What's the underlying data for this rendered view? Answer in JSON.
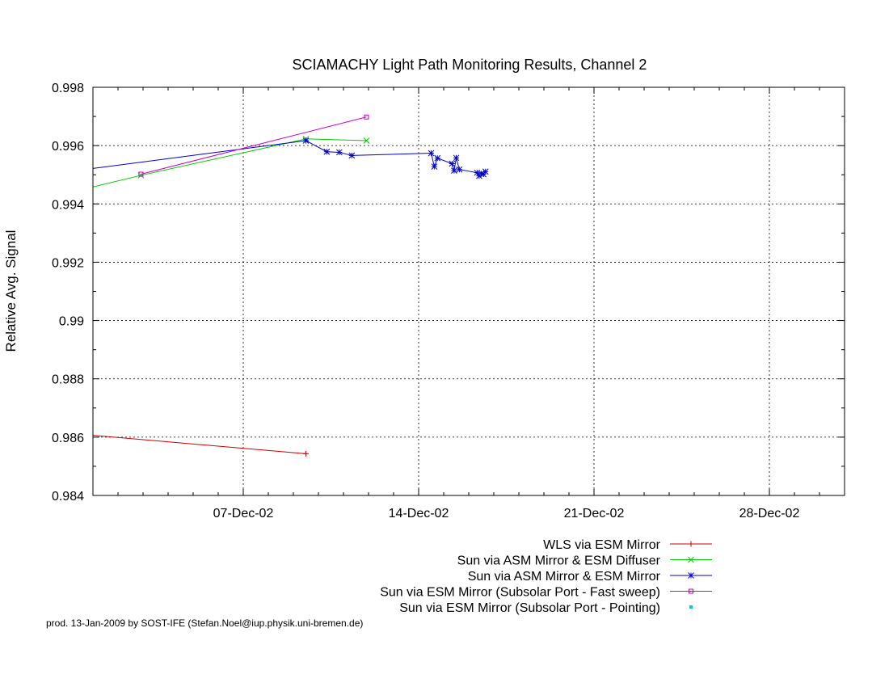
{
  "chart_data": {
    "type": "line",
    "title": "SCIAMACHY Light Path Monitoring Results, Channel 2",
    "xlabel": "",
    "ylabel": "Relative Avg. Signal",
    "x_axis_type": "date",
    "xlim": [
      "2002-12-01",
      "2002-12-31"
    ],
    "ylim": [
      0.984,
      0.998
    ],
    "y_ticks": [
      0.984,
      0.986,
      0.988,
      0.99,
      0.992,
      0.994,
      0.996,
      0.998
    ],
    "y_tick_labels": [
      "0.984",
      "0.986",
      "0.988",
      "0.99",
      "0.992",
      "0.994",
      "0.996",
      "0.998"
    ],
    "x_ticks": [
      "2002-12-07",
      "2002-12-14",
      "2002-12-21",
      "2002-12-28"
    ],
    "x_tick_labels": [
      "07-Dec-02",
      "14-Dec-02",
      "21-Dec-02",
      "28-Dec-02"
    ],
    "grid": true,
    "legend_position": "bottom-right, below plot",
    "series": [
      {
        "name": "WLS via ESM Mirror",
        "color": "#cc0000",
        "marker": "plus",
        "points": [
          [
            "2002-11-30T12:00",
            0.9861
          ],
          [
            "2002-12-09T12:00",
            0.98543
          ]
        ]
      },
      {
        "name": "Sun via ASM Mirror & ESM Diffuser",
        "color": "#00cc00",
        "marker": "x",
        "points": [
          [
            "2002-11-30T12:00",
            0.99448
          ],
          [
            "2002-12-02T22:00",
            0.99498
          ],
          [
            "2002-12-09T12:00",
            0.99623
          ],
          [
            "2002-12-11T22:00",
            0.99617
          ]
        ]
      },
      {
        "name": "Sun via ASM Mirror & ESM Mirror",
        "color": "#0000cc",
        "marker": "star",
        "points": [
          [
            "2002-11-30T12:00",
            0.99516
          ],
          [
            "2002-12-09T12:00",
            0.99617
          ],
          [
            "2002-12-10T08:00",
            0.99579
          ],
          [
            "2002-12-10T20:00",
            0.99577
          ],
          [
            "2002-12-11T08:00",
            0.99566
          ],
          [
            "2002-12-14T12:00",
            0.99574
          ],
          [
            "2002-12-14T15:00",
            0.99528
          ],
          [
            "2002-12-14T18:00",
            0.99557
          ],
          [
            "2002-12-15T08:00",
            0.99538
          ],
          [
            "2002-12-15T10:00",
            0.99514
          ],
          [
            "2002-12-15T12:00",
            0.99558
          ],
          [
            "2002-12-15T15:00",
            0.99518
          ],
          [
            "2002-12-16T08:00",
            0.99507
          ],
          [
            "2002-12-16T10:00",
            0.99496
          ],
          [
            "2002-12-16T12:00",
            0.99504
          ],
          [
            "2002-12-16T14:00",
            0.99502
          ],
          [
            "2002-12-16T16:00",
            0.99511
          ]
        ]
      },
      {
        "name": "Sun via ESM Mirror (Subsolar Port - Fast sweep)",
        "color": "#cc00cc",
        "marker": "square",
        "points": [
          [
            "2002-12-02T22:00",
            0.99502
          ],
          [
            "2002-12-11T22:00",
            0.99698
          ]
        ]
      },
      {
        "name": "Sun via ESM Mirror (Subsolar Port - Pointing)",
        "color": "#00cccc",
        "marker": "dot",
        "points": []
      }
    ]
  },
  "footer": "prod. 13-Jan-2009 by SOST-IFE (Stefan.Noel@iup.physik.uni-bremen.de)"
}
